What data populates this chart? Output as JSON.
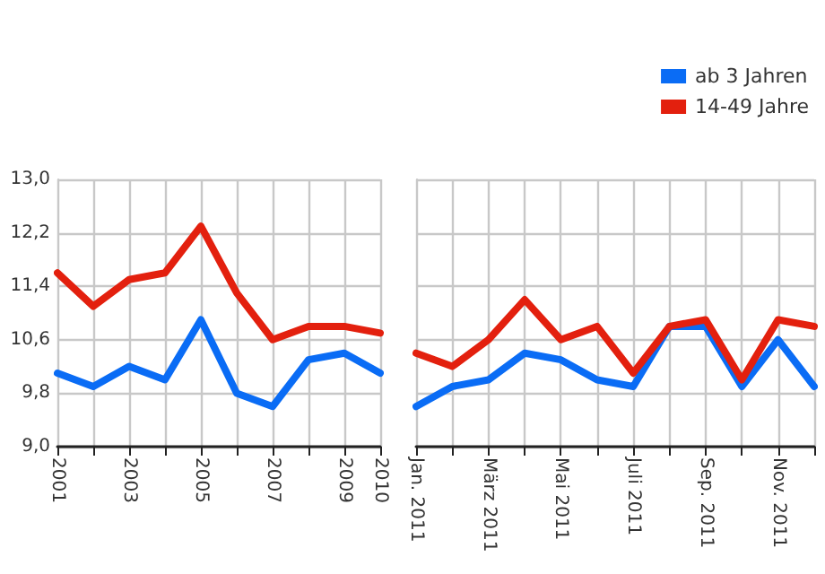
{
  "chart_data": [
    {
      "type": "line",
      "categories": [
        "2001",
        null,
        "2003",
        null,
        "2005",
        null,
        "2007",
        null,
        "2009",
        "2010"
      ],
      "series": [
        {
          "color": "#0a6cf5",
          "values": [
            10.1,
            9.9,
            10.2,
            10.0,
            10.9,
            9.8,
            9.6,
            10.3,
            10.4,
            10.1
          ]
        },
        {
          "color": "#e3200e",
          "values": [
            11.6,
            11.1,
            11.5,
            11.6,
            12.3,
            11.3,
            10.6,
            10.8,
            10.8,
            10.7
          ]
        }
      ],
      "ylim": [
        9.0,
        13.0
      ],
      "yticks": [
        {
          "value": 9.0,
          "label": "9,0"
        },
        {
          "value": 9.8,
          "label": "9,8"
        },
        {
          "value": 10.6,
          "label": "10,6"
        },
        {
          "value": 11.4,
          "label": "11,4"
        },
        {
          "value": 12.2,
          "label": "12,2"
        },
        {
          "value": 13.0,
          "label": "13,0"
        }
      ],
      "grid": true,
      "legend": false,
      "marker": "none",
      "line_style": "solid"
    },
    {
      "type": "line",
      "categories": [
        "Jan. 2011",
        null,
        "März 2011",
        null,
        "Mai 2011",
        null,
        "Juli 2011",
        null,
        "Sep. 2011",
        null,
        "Nov. 2011",
        null
      ],
      "series": [
        {
          "name": "ab 3 Jahren",
          "color": "#0a6cf5",
          "values": [
            9.6,
            9.9,
            10.0,
            10.4,
            10.3,
            10.0,
            9.9,
            10.8,
            10.8,
            9.9,
            10.6,
            9.9
          ]
        },
        {
          "name": "14-49 Jahre",
          "color": "#e3200e",
          "values": [
            10.4,
            10.2,
            10.6,
            11.2,
            10.6,
            10.8,
            10.1,
            10.8,
            10.9,
            10.0,
            10.9,
            10.8
          ]
        }
      ],
      "ylim": [
        9.0,
        13.0
      ],
      "yticks": [
        9.0,
        9.8,
        10.6,
        11.4,
        12.2,
        13.0
      ],
      "tick_labels": "x",
      "grid": true,
      "legend": "top right",
      "marker": "none",
      "line_style": "solid"
    }
  ]
}
